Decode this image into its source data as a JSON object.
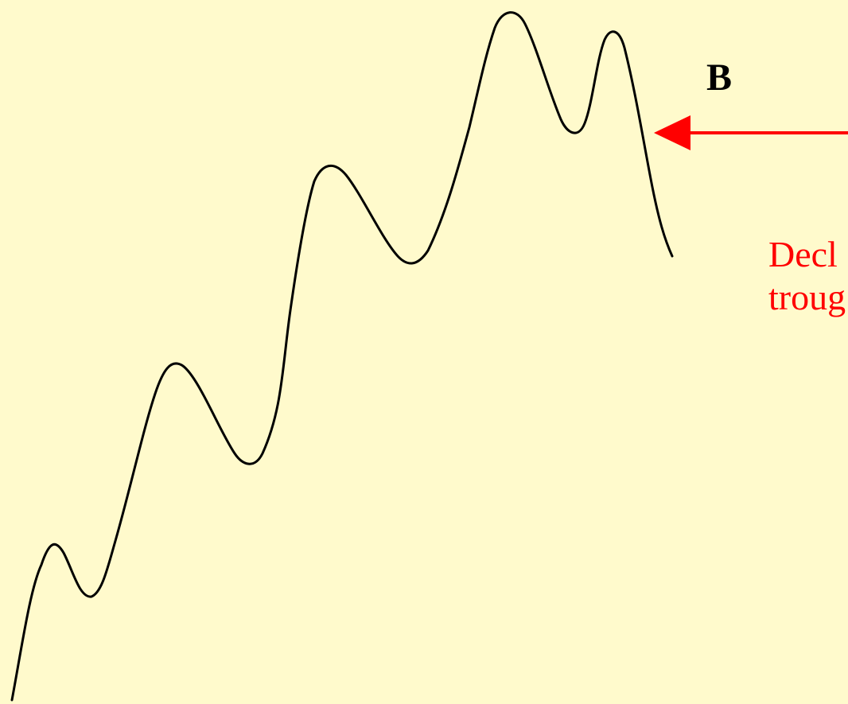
{
  "labels": {
    "point_b": "B"
  },
  "annotation": {
    "line1": "Decl",
    "line2": "troug"
  },
  "colors": {
    "background": "#fffacc",
    "price_line": "#000000",
    "arrow": "#ff0000",
    "annotation_text": "#ff0000"
  }
}
